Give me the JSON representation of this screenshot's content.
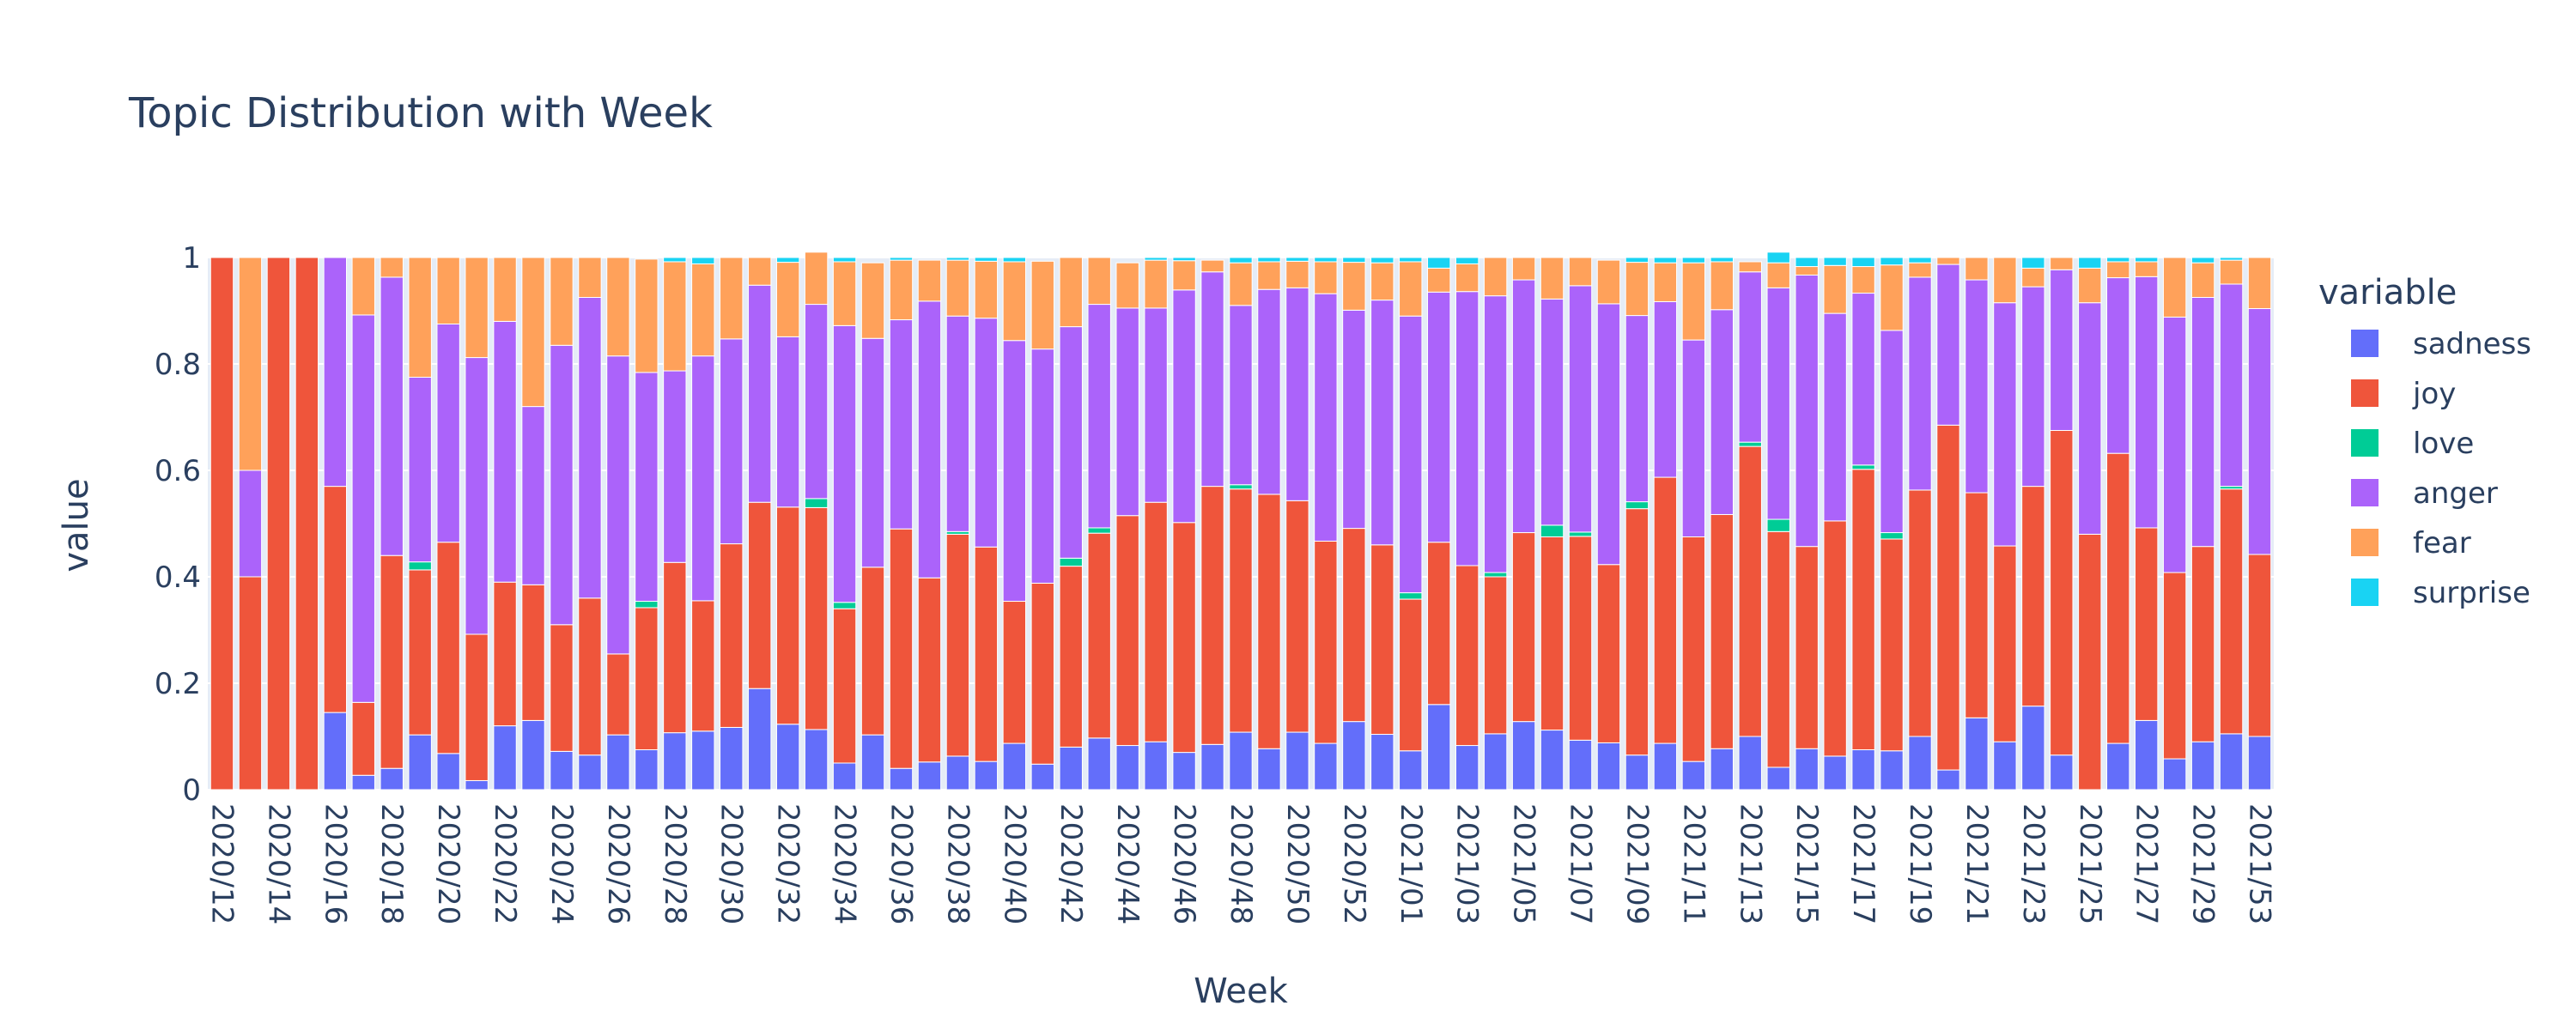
{
  "chart_data": {
    "type": "bar",
    "stacked": true,
    "title": "Topic Distribution with Week",
    "xlabel": "Week",
    "ylabel": "value",
    "ylim": [
      0,
      1
    ],
    "yticks": [
      0,
      0.2,
      0.4,
      0.6,
      0.8,
      1
    ],
    "ytick_labels": [
      "0",
      "0.2",
      "0.4",
      "0.6",
      "0.8",
      "1"
    ],
    "legend_title": "variable",
    "legend_position": "right",
    "plot_background": "#E5ECF6",
    "categories": [
      "2020/12",
      "2020/13",
      "2020/14",
      "2020/15",
      "2020/16",
      "2020/17",
      "2020/18",
      "2020/19",
      "2020/20",
      "2020/21",
      "2020/22",
      "2020/23",
      "2020/24",
      "2020/25",
      "2020/26",
      "2020/27",
      "2020/28",
      "2020/29",
      "2020/30",
      "2020/31",
      "2020/32",
      "2020/33",
      "2020/34",
      "2020/35",
      "2020/36",
      "2020/37",
      "2020/38",
      "2020/39",
      "2020/40",
      "2020/41",
      "2020/42",
      "2020/43",
      "2020/44",
      "2020/45",
      "2020/46",
      "2020/47",
      "2020/48",
      "2020/49",
      "2020/50",
      "2020/51",
      "2020/52",
      "2020/53",
      "2021/01",
      "2021/02",
      "2021/03",
      "2021/04",
      "2021/05",
      "2021/06",
      "2021/07",
      "2021/08",
      "2021/09",
      "2021/10",
      "2021/11",
      "2021/12",
      "2021/13",
      "2021/14",
      "2021/15",
      "2021/16",
      "2021/17",
      "2021/18",
      "2021/19",
      "2021/20",
      "2021/21",
      "2021/22",
      "2021/23",
      "2021/24",
      "2021/25",
      "2021/26",
      "2021/27",
      "2021/28",
      "2021/29",
      "2021/30",
      "2021/53"
    ],
    "xtick_labels": [
      "2020/12",
      "2020/14",
      "2020/16",
      "2020/18",
      "2020/20",
      "2020/22",
      "2020/24",
      "2020/26",
      "2020/28",
      "2020/30",
      "2020/32",
      "2020/34",
      "2020/36",
      "2020/38",
      "2020/40",
      "2020/42",
      "2020/44",
      "2020/46",
      "2020/48",
      "2020/50",
      "2020/52",
      "2021/01",
      "2021/03",
      "2021/05",
      "2021/07",
      "2021/09",
      "2021/11",
      "2021/13",
      "2021/15",
      "2021/17",
      "2021/19",
      "2021/21",
      "2021/23",
      "2021/25",
      "2021/27",
      "2021/29",
      "2021/53"
    ],
    "series": [
      {
        "name": "sadness",
        "color": "#636EFA",
        "values": [
          0,
          0,
          0,
          0,
          0.145,
          0.027,
          0.04,
          0.103,
          0.068,
          0.017,
          0.12,
          0.13,
          0.072,
          0.065,
          0.103,
          0.075,
          0.107,
          0.11,
          0.117,
          0.19,
          0.123,
          0.113,
          0.05,
          0.103,
          0.04,
          0.052,
          0.063,
          0.053,
          0.087,
          0.048,
          0.08,
          0.097,
          0.083,
          0.09,
          0.07,
          0.085,
          0.108,
          0.077,
          0.108,
          0.087,
          0.128,
          0.104,
          0.073,
          0.16,
          0.083,
          0.105,
          0.128,
          0.112,
          0.093,
          0.088,
          0.065,
          0.087,
          0.053,
          0.077,
          0.1,
          0.042,
          0.077,
          0.063,
          0.075,
          0.073,
          0.1,
          0.037,
          0.135,
          0.09,
          0.157,
          0.065,
          0,
          0.087,
          0.13,
          0.058,
          0.09,
          0.105,
          0.1
        ]
      },
      {
        "name": "joy",
        "color": "#EF553B",
        "values": [
          1,
          0.4,
          1,
          1,
          0.425,
          0.137,
          0.4,
          0.31,
          0.397,
          0.275,
          0.27,
          0.255,
          0.238,
          0.295,
          0.152,
          0.267,
          0.32,
          0.245,
          0.345,
          0.35,
          0.408,
          0.417,
          0.29,
          0.315,
          0.45,
          0.346,
          0.417,
          0.403,
          0.267,
          0.34,
          0.34,
          0.385,
          0.432,
          0.45,
          0.432,
          0.485,
          0.457,
          0.478,
          0.435,
          0.38,
          0.363,
          0.356,
          0.285,
          0.305,
          0.338,
          0.295,
          0.355,
          0.363,
          0.383,
          0.335,
          0.463,
          0.5,
          0.422,
          0.44,
          0.545,
          0.443,
          0.38,
          0.442,
          0.527,
          0.398,
          0.463,
          0.648,
          0.423,
          0.368,
          0.413,
          0.61,
          0.48,
          0.545,
          0.362,
          0.35,
          0.367,
          0.46,
          0.342
        ]
      },
      {
        "name": "love",
        "color": "#00CC96",
        "values": [
          0,
          0,
          0,
          0,
          0,
          0,
          0,
          0.015,
          0,
          0,
          0,
          0,
          0,
          0,
          0,
          0.012,
          0,
          0,
          0,
          0,
          0,
          0.017,
          0.012,
          0,
          0,
          0,
          0.005,
          0,
          0,
          0,
          0.015,
          0.01,
          0,
          0,
          0,
          0,
          0.008,
          0,
          0,
          0,
          0,
          0,
          0.012,
          0,
          0,
          0.008,
          0,
          0.022,
          0.008,
          0,
          0.013,
          0,
          0,
          0,
          0.008,
          0.023,
          0,
          0,
          0.008,
          0.012,
          0,
          0,
          0,
          0,
          0,
          0,
          0,
          0,
          0,
          0,
          0,
          0.005,
          0
        ]
      },
      {
        "name": "anger",
        "color": "#AB63FA",
        "values": [
          0,
          0.2,
          0,
          0,
          0.43,
          0.728,
          0.523,
          0.347,
          0.41,
          0.52,
          0.49,
          0.335,
          0.525,
          0.565,
          0.56,
          0.43,
          0.36,
          0.46,
          0.385,
          0.408,
          0.32,
          0.365,
          0.52,
          0.43,
          0.393,
          0.52,
          0.405,
          0.43,
          0.49,
          0.44,
          0.435,
          0.42,
          0.39,
          0.365,
          0.437,
          0.403,
          0.337,
          0.385,
          0.4,
          0.465,
          0.41,
          0.46,
          0.52,
          0.47,
          0.515,
          0.52,
          0.475,
          0.425,
          0.463,
          0.49,
          0.35,
          0.33,
          0.37,
          0.385,
          0.32,
          0.435,
          0.51,
          0.39,
          0.323,
          0.38,
          0.4,
          0.302,
          0.4,
          0.457,
          0.375,
          0.302,
          0.435,
          0.33,
          0.472,
          0.48,
          0.468,
          0.38,
          0.462
        ]
      },
      {
        "name": "fear",
        "color": "#FFA15A",
        "values": [
          0,
          0.4,
          0,
          0,
          0,
          0.108,
          0.037,
          0.225,
          0.125,
          0.188,
          0.12,
          0.28,
          0.165,
          0.075,
          0.185,
          0.213,
          0.205,
          0.173,
          0.153,
          0.052,
          0.14,
          0.098,
          0.12,
          0.142,
          0.112,
          0.077,
          0.105,
          0.107,
          0.148,
          0.165,
          0.13,
          0.088,
          0.085,
          0.09,
          0.055,
          0.022,
          0.08,
          0.052,
          0.05,
          0.06,
          0.09,
          0.07,
          0.102,
          0.045,
          0.052,
          0.072,
          0.042,
          0.078,
          0.053,
          0.082,
          0.1,
          0.073,
          0.145,
          0.09,
          0.019,
          0.047,
          0.016,
          0.09,
          0.05,
          0.123,
          0.027,
          0.013,
          0.042,
          0.085,
          0.035,
          0.023,
          0.065,
          0.03,
          0.028,
          0.112,
          0.065,
          0.045,
          0.096
        ]
      },
      {
        "name": "surprise",
        "color": "#19D3F3",
        "values": [
          0,
          0,
          0,
          0,
          0,
          0,
          0,
          0,
          0,
          0,
          0,
          0,
          0,
          0,
          0,
          0,
          0.008,
          0.012,
          0,
          0,
          0.009,
          0,
          0.008,
          0,
          0.005,
          0,
          0.005,
          0.007,
          0.008,
          0,
          0,
          0,
          0,
          0.005,
          0.006,
          0,
          0.01,
          0.008,
          0.007,
          0.008,
          0.009,
          0.01,
          0.008,
          0.02,
          0.012,
          0,
          0,
          0,
          0,
          0,
          0.009,
          0.01,
          0.01,
          0.008,
          0,
          0.02,
          0.017,
          0.015,
          0.017,
          0.014,
          0.01,
          0,
          0,
          0,
          0.02,
          0,
          0.02,
          0.008,
          0.008,
          0,
          0.01,
          0.005,
          0
        ]
      }
    ]
  }
}
